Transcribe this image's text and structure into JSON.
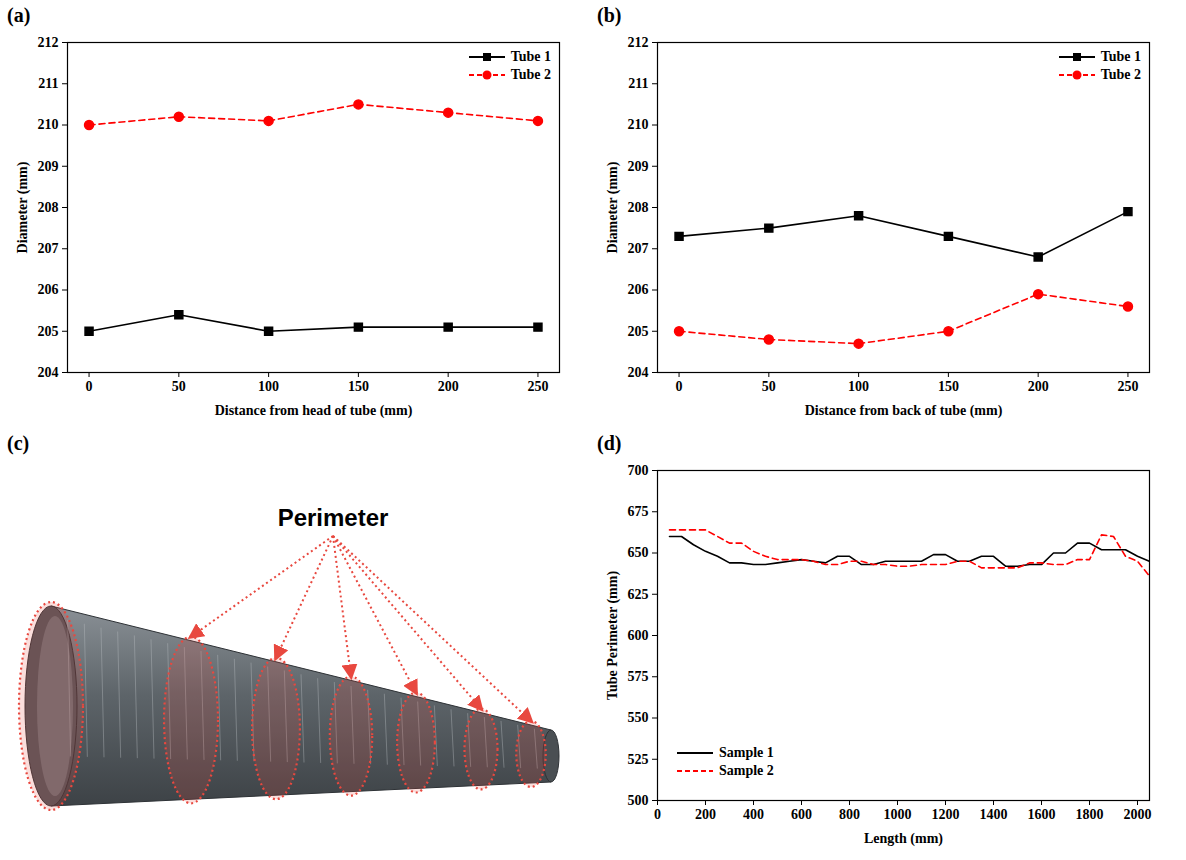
{
  "panel_labels": [
    "(a)",
    "(b)",
    "(c)",
    "(d)"
  ],
  "photo": {
    "annotation": "Perimeter"
  },
  "chart_data": [
    {
      "type": "line",
      "x_label": "Distance from head of tube (mm)",
      "y_label": "Diameter (mm)",
      "x": [
        0,
        50,
        100,
        150,
        200,
        250
      ],
      "xlim": [
        -12,
        262
      ],
      "xticks": [
        0,
        50,
        100,
        150,
        200,
        250
      ],
      "ylim": [
        204,
        212
      ],
      "yticks": [
        204,
        205,
        206,
        207,
        208,
        209,
        210,
        211,
        212
      ],
      "legend": "upper right",
      "series": [
        {
          "name": "Tube 1",
          "color": "#000000",
          "marker": "square",
          "line_style": "solid",
          "values": [
            205.0,
            205.4,
            205.0,
            205.1,
            205.1,
            205.1
          ]
        },
        {
          "name": "Tube 2",
          "color": "#ff0000",
          "marker": "circle",
          "line_style": "dashed",
          "values": [
            210.0,
            210.2,
            210.1,
            210.5,
            210.3,
            210.1
          ]
        }
      ]
    },
    {
      "type": "line",
      "x_label": "Distance from back of tube (mm)",
      "y_label": "Diameter (mm)",
      "x": [
        0,
        50,
        100,
        150,
        200,
        250
      ],
      "xlim": [
        -12,
        262
      ],
      "xticks": [
        0,
        50,
        100,
        150,
        200,
        250
      ],
      "ylim": [
        204,
        212
      ],
      "yticks": [
        204,
        205,
        206,
        207,
        208,
        209,
        210,
        211,
        212
      ],
      "legend": "upper right",
      "series": [
        {
          "name": "Tube 1",
          "color": "#000000",
          "marker": "square",
          "line_style": "solid",
          "values": [
            207.3,
            207.5,
            207.8,
            207.3,
            206.8,
            207.9
          ]
        },
        {
          "name": "Tube 2",
          "color": "#ff0000",
          "marker": "circle",
          "line_style": "dashed",
          "values": [
            205.0,
            204.8,
            204.7,
            205.0,
            205.9,
            205.6
          ]
        }
      ]
    },
    {
      "type": "line",
      "x_label": "Length (mm)",
      "y_label": "Tube Perimeter (mm)",
      "x": [
        50,
        100,
        150,
        200,
        250,
        300,
        350,
        400,
        450,
        500,
        550,
        600,
        650,
        700,
        750,
        800,
        850,
        900,
        950,
        1000,
        1050,
        1100,
        1150,
        1200,
        1250,
        1300,
        1350,
        1400,
        1450,
        1500,
        1550,
        1600,
        1650,
        1700,
        1750,
        1800,
        1850,
        1900,
        1950,
        2000,
        2050
      ],
      "xlim": [
        0,
        2050
      ],
      "xticks": [
        0,
        200,
        400,
        600,
        800,
        1000,
        1200,
        1400,
        1600,
        1800,
        2000
      ],
      "ylim": [
        500,
        700
      ],
      "yticks": [
        500,
        525,
        550,
        575,
        600,
        625,
        650,
        675,
        700
      ],
      "legend": "lower left",
      "series": [
        {
          "name": "Sample 1",
          "color": "#000000",
          "marker": "none",
          "line_style": "solid",
          "values": [
            660,
            660,
            655,
            651,
            648,
            644,
            644,
            643,
            643,
            644,
            645,
            646,
            645,
            644,
            648,
            648,
            643,
            643,
            645,
            645,
            645,
            645,
            649,
            649,
            645,
            645,
            648,
            648,
            642,
            642,
            643,
            643,
            650,
            650,
            656,
            656,
            652,
            652,
            652,
            648,
            645
          ]
        },
        {
          "name": "Sample 2",
          "color": "#ff0000",
          "marker": "none",
          "line_style": "dashed",
          "values": [
            664,
            664,
            664,
            664,
            660,
            656,
            656,
            651,
            648,
            646,
            646,
            646,
            645,
            643,
            643,
            645,
            645,
            643,
            643,
            642,
            642,
            643,
            643,
            643,
            645,
            645,
            641,
            641,
            641,
            641,
            644,
            644,
            643,
            643,
            646,
            646,
            661,
            660,
            648,
            645,
            636
          ]
        }
      ]
    }
  ]
}
